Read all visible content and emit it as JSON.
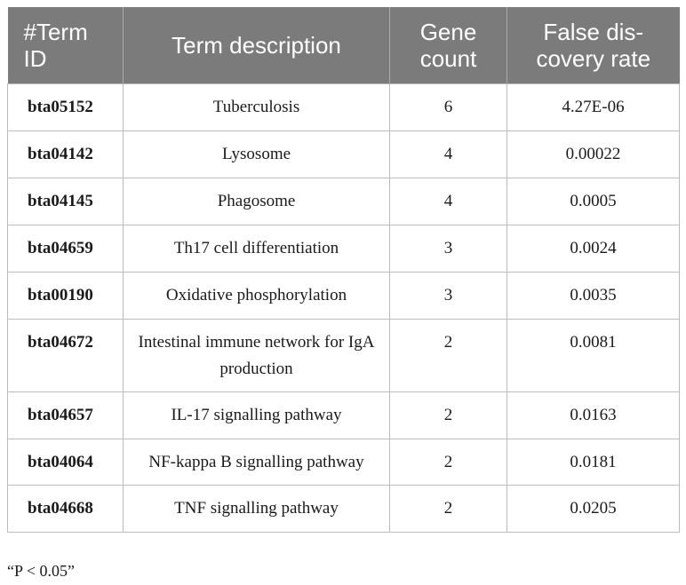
{
  "table": {
    "headers": {
      "term_id": "#Term ID",
      "term_description": "Term description",
      "gene_count": "Gene count",
      "fdr": "False dis- covery rate"
    },
    "rows": [
      {
        "id": "bta05152",
        "description": "Tuberculosis",
        "count": "6",
        "fdr": "4.27E-06"
      },
      {
        "id": "bta04142",
        "description": "Lysosome",
        "count": "4",
        "fdr": "0.00022"
      },
      {
        "id": "bta04145",
        "description": "Phagosome",
        "count": "4",
        "fdr": "0.0005"
      },
      {
        "id": "bta04659",
        "description": "Th17 cell differentiation",
        "count": "3",
        "fdr": "0.0024"
      },
      {
        "id": "bta00190",
        "description": "Oxidative phosphorylation",
        "count": "3",
        "fdr": "0.0035"
      },
      {
        "id": "bta04672",
        "description": "Intestinal immune network for IgA production",
        "count": "2",
        "fdr": "0.0081"
      },
      {
        "id": "bta04657",
        "description": "IL-17 signalling pathway",
        "count": "2",
        "fdr": "0.0163"
      },
      {
        "id": "bta04064",
        "description": "NF-kappa B signalling pathway",
        "count": "2",
        "fdr": "0.0181"
      },
      {
        "id": "bta04668",
        "description": "TNF signalling pathway",
        "count": "2",
        "fdr": "0.0205"
      }
    ]
  },
  "footnote": "“P < 0.05”"
}
